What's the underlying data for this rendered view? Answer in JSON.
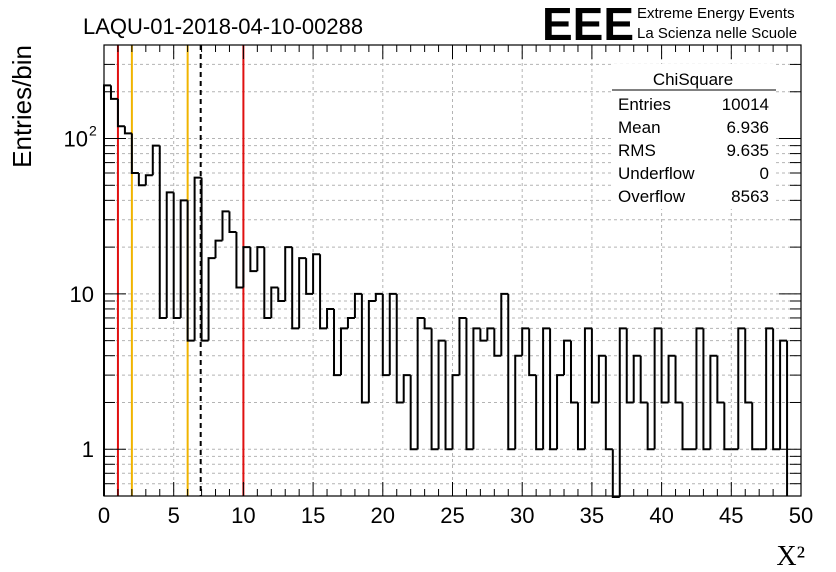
{
  "page_title": "LAQU-01-2018-04-10-00288",
  "logo": {
    "text": "EEE",
    "line1": "Extreme Energy Events",
    "line2": "La Scienza nelle Scuole",
    "color": "#1a1aff"
  },
  "stats_box": {
    "title": "ChiSquare",
    "rows": [
      {
        "label": "Entries",
        "value": "10014"
      },
      {
        "label": "Mean",
        "value": "6.936"
      },
      {
        "label": "RMS",
        "value": "9.635"
      },
      {
        "label": "Underflow",
        "value": "0"
      },
      {
        "label": "Overflow",
        "value": "8563"
      }
    ]
  },
  "chart_data": {
    "type": "histogram",
    "title": "LAQU-01-2018-04-10-00288",
    "xlabel": "X²",
    "ylabel": "Entries/bin",
    "xlim": [
      0,
      50
    ],
    "ylim": [
      0.5,
      400
    ],
    "yscale": "log",
    "grid": true,
    "bin_width": 0.5,
    "x_ticks": [
      "0",
      "5",
      "10",
      "15",
      "20",
      "25",
      "30",
      "35",
      "40",
      "45",
      "50"
    ],
    "y_ticks": [
      {
        "value": 1,
        "label": "1"
      },
      {
        "value": 10,
        "label": "10"
      },
      {
        "value": 100,
        "label": "10",
        "exponent": "2"
      }
    ],
    "values": [
      220,
      180,
      120,
      108,
      60,
      50,
      58,
      90,
      7,
      45,
      7,
      40,
      5,
      56,
      5,
      17,
      22,
      34,
      25,
      11,
      20,
      14,
      20,
      7,
      11,
      9,
      20,
      6,
      17,
      10,
      18,
      6,
      8,
      3,
      6,
      7,
      10,
      2,
      9,
      10,
      3,
      10,
      2,
      3,
      1,
      7,
      6,
      1,
      5,
      1,
      3,
      7,
      1,
      6,
      5,
      6,
      4,
      10,
      1,
      4,
      6,
      3,
      1,
      6,
      1,
      3,
      5,
      2,
      1,
      6,
      2,
      4,
      1,
      0,
      6,
      2,
      4,
      2,
      1,
      6,
      2,
      4,
      2,
      1,
      1,
      6,
      1,
      4,
      2,
      1,
      1,
      6,
      2,
      1,
      1,
      6,
      1,
      5
    ],
    "vertical_lines": [
      {
        "x": 1.0,
        "color": "#e01010",
        "style": "solid"
      },
      {
        "x": 2.0,
        "color": "#f0b400",
        "style": "solid"
      },
      {
        "x": 6.0,
        "color": "#f0b400",
        "style": "solid"
      },
      {
        "x": 6.936,
        "color": "#000000",
        "style": "dashed"
      },
      {
        "x": 10.0,
        "color": "#e01010",
        "style": "solid"
      }
    ]
  }
}
